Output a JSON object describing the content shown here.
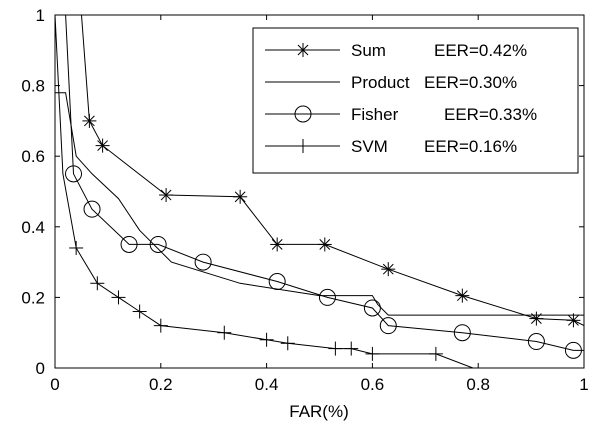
{
  "chart_data": {
    "type": "line",
    "title": "",
    "xlabel": "FAR(%)",
    "ylabel": "",
    "xlim": [
      0,
      1
    ],
    "ylim": [
      0,
      1
    ],
    "xticks": [
      "0",
      "0.2",
      "0.4",
      "0.6",
      "0.8",
      "1"
    ],
    "yticks": [
      "0",
      "0.2",
      "0.4",
      "0.6",
      "0.8",
      "1"
    ],
    "grid": false,
    "legend_position": "top-right",
    "series": [
      {
        "name": "Sum",
        "eer": "EER=0.42%",
        "marker": "asterisk",
        "x": [
          0.05,
          0.065,
          0.09,
          0.21,
          0.35,
          0.42,
          0.51,
          0.63,
          0.77,
          0.91,
          0.98,
          1.0
        ],
        "y": [
          1.0,
          0.7,
          0.63,
          0.49,
          0.485,
          0.35,
          0.35,
          0.28,
          0.205,
          0.14,
          0.135,
          0.12
        ],
        "marker_x": [
          0.065,
          0.09,
          0.21,
          0.35,
          0.42,
          0.51,
          0.63,
          0.77,
          0.91,
          0.98
        ],
        "marker_y": [
          0.7,
          0.63,
          0.49,
          0.485,
          0.35,
          0.35,
          0.28,
          0.205,
          0.14,
          0.135
        ]
      },
      {
        "name": "Product",
        "eer": "EER=0.30%",
        "marker": "none",
        "x": [
          0.0,
          0.02,
          0.04,
          0.07,
          0.12,
          0.16,
          0.22,
          0.35,
          0.5,
          0.6,
          0.61,
          0.63,
          1.0
        ],
        "y": [
          0.78,
          0.78,
          0.6,
          0.55,
          0.48,
          0.39,
          0.3,
          0.24,
          0.205,
          0.205,
          0.18,
          0.15,
          0.15
        ]
      },
      {
        "name": "Fisher",
        "eer": "EER=0.33%",
        "marker": "circle",
        "x": [
          0.02,
          0.035,
          0.07,
          0.14,
          0.195,
          0.28,
          0.42,
          0.515,
          0.6,
          0.63,
          0.77,
          0.91,
          0.98,
          1.0
        ],
        "y": [
          1.0,
          0.55,
          0.45,
          0.35,
          0.35,
          0.3,
          0.245,
          0.2,
          0.17,
          0.12,
          0.1,
          0.075,
          0.05,
          0.05
        ],
        "marker_x": [
          0.035,
          0.07,
          0.14,
          0.195,
          0.28,
          0.42,
          0.515,
          0.6,
          0.63,
          0.77,
          0.91,
          0.98
        ],
        "marker_y": [
          0.55,
          0.45,
          0.35,
          0.35,
          0.3,
          0.245,
          0.2,
          0.17,
          0.12,
          0.1,
          0.075,
          0.05
        ]
      },
      {
        "name": "SVM",
        "eer": "EER=0.16%",
        "marker": "plus",
        "x": [
          0.0,
          0.015,
          0.04,
          0.08,
          0.12,
          0.16,
          0.2,
          0.32,
          0.4,
          0.44,
          0.53,
          0.56,
          0.6,
          0.72,
          0.79,
          1.0
        ],
        "y": [
          1.0,
          0.55,
          0.34,
          0.24,
          0.2,
          0.16,
          0.12,
          0.1,
          0.08,
          0.07,
          0.055,
          0.055,
          0.04,
          0.04,
          0.0,
          0.0
        ],
        "marker_x": [
          0.04,
          0.08,
          0.12,
          0.16,
          0.2,
          0.32,
          0.4,
          0.44,
          0.53,
          0.56,
          0.6,
          0.72
        ],
        "marker_y": [
          0.34,
          0.24,
          0.2,
          0.16,
          0.12,
          0.1,
          0.08,
          0.07,
          0.055,
          0.055,
          0.04,
          0.04
        ]
      }
    ]
  },
  "colors": {
    "line": "#000000",
    "background": "#ffffff"
  }
}
